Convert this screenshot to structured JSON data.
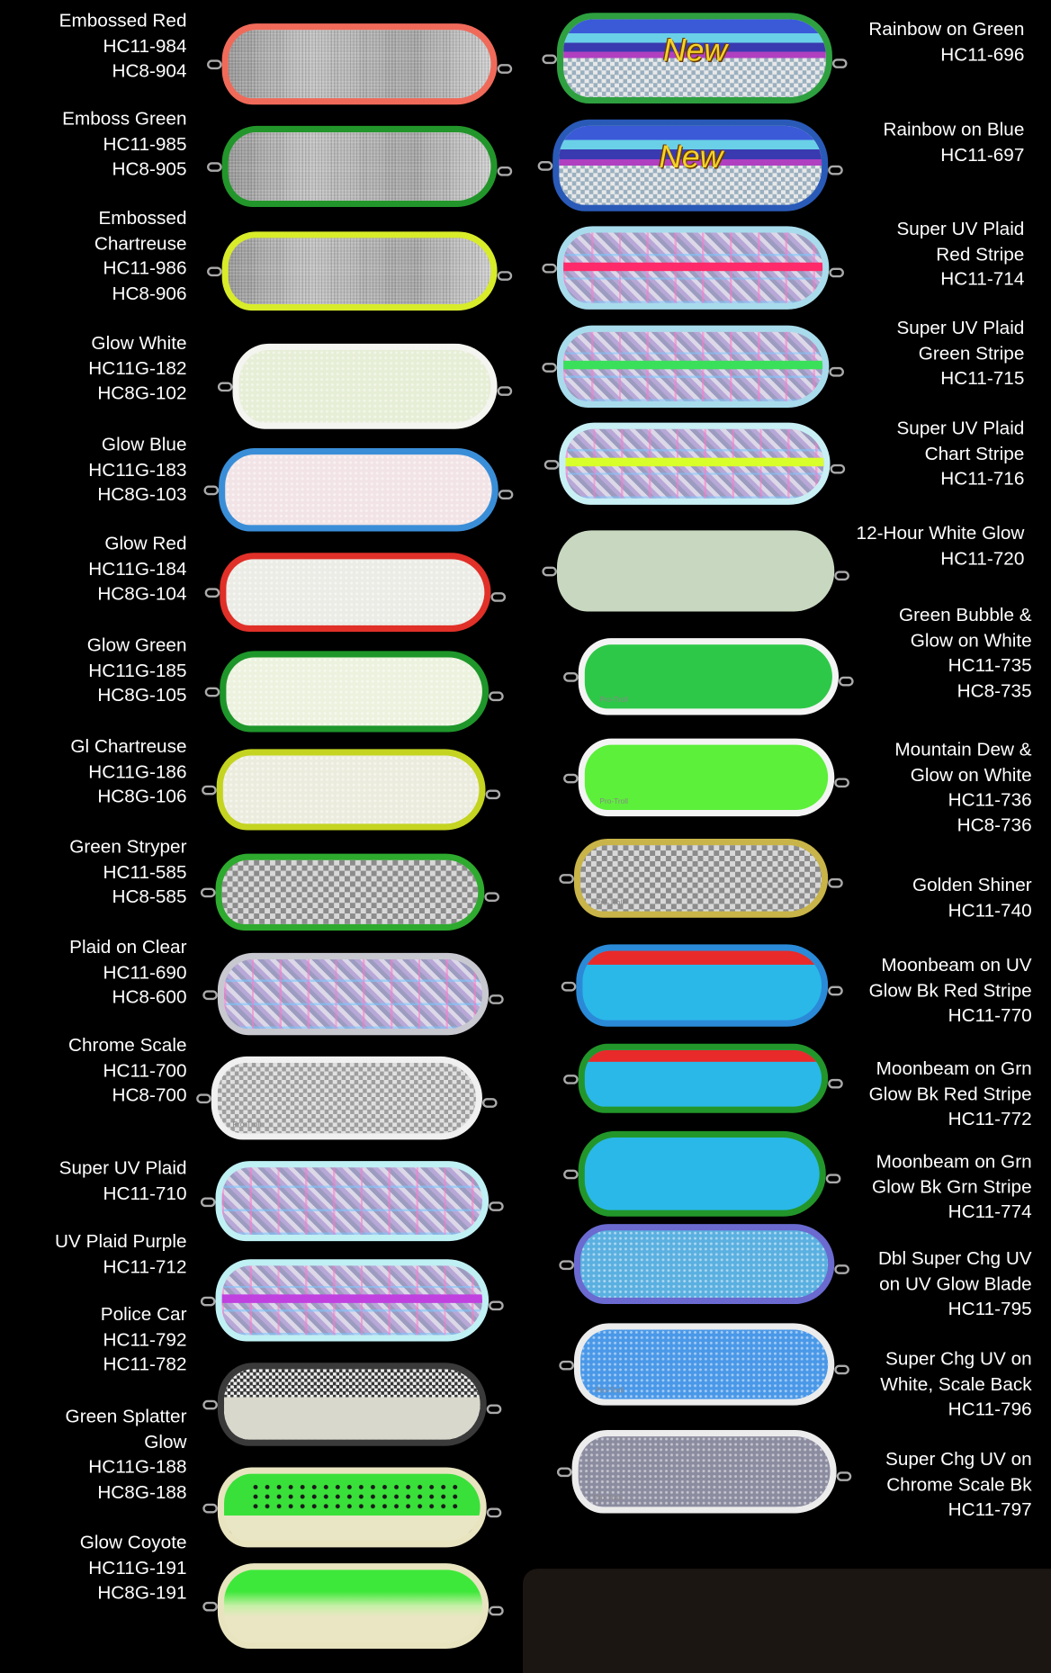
{
  "left_column": [
    {
      "lines": [
        "Embossed  Red",
        "HC11-984",
        "HC8-904"
      ],
      "border": "#f06a5a",
      "fill": "#b0b0b0",
      "pattern": "emboss"
    },
    {
      "lines": [
        "Emboss  Green",
        "HC11-985",
        "HC8-905"
      ],
      "border": "#22962a",
      "fill": "#b0b0b0",
      "pattern": "emboss"
    },
    {
      "lines": [
        "Embossed",
        "Chartreuse",
        "HC11-986",
        "HC8-906"
      ],
      "border": "#d8ec2a",
      "fill": "#b0b0b0",
      "pattern": "emboss"
    },
    {
      "lines": [
        "Glow White",
        "HC11G-182",
        "HC8G-102"
      ],
      "border": "#f4f4f0",
      "fill": "#e6eed6",
      "pattern": "glitter"
    },
    {
      "lines": [
        "Glow Blue",
        "HC11G-183",
        "HC8G-103"
      ],
      "border": "#3a8ed8",
      "fill": "#f2e4e6",
      "pattern": "glitter"
    },
    {
      "lines": [
        "Glow Red",
        "HC11G-184",
        "HC8G-104"
      ],
      "border": "#e03028",
      "fill": "#ecece6",
      "pattern": "glitter"
    },
    {
      "lines": [
        "Glow Green",
        "HC11G-185",
        "HC8G-105"
      ],
      "border": "#1e962a",
      "fill": "#ecf2de",
      "pattern": "glitter"
    },
    {
      "lines": [
        "Gl Chartreuse",
        "HC11G-186",
        "HC8G-106"
      ],
      "border": "#c4d420",
      "fill": "#ececde",
      "pattern": "glitter"
    },
    {
      "lines": [
        "Green Stryper",
        "HC11-585",
        "HC8-585"
      ],
      "border": "#2eaa2e",
      "fill": "#b8b8b8",
      "pattern": "checker"
    },
    {
      "lines": [
        "Plaid on Clear",
        "HC11-690",
        "HC8-600"
      ],
      "border": "#c8c8d0",
      "fill": "#c8c0dc",
      "pattern": "plaid"
    },
    {
      "lines": [
        "Chrome Scale",
        "HC11-700",
        "HC8-700"
      ],
      "border": "#f0f0f0",
      "fill": "#c0c0c0",
      "pattern": "scale",
      "logo": "Pro-Troll"
    },
    {
      "lines": [
        "Super UV Plaid",
        "HC11-710"
      ],
      "border": "#bff0f4",
      "fill": "#c8c0dc",
      "pattern": "plaid"
    },
    {
      "lines": [
        "UV Plaid Purple",
        "HC11-712"
      ],
      "border": "#bff0f4",
      "fill": "#c8c0dc",
      "pattern": "plaid",
      "stripe": "#c040e0"
    },
    {
      "lines": [
        "Police Car",
        "HC11-792",
        "HC11-782"
      ],
      "border": "#3a3a3a",
      "fill": "#d8d8cc",
      "pattern": "police"
    },
    {
      "lines": [
        "Green Splatter",
        "Glow",
        "HC11G-188",
        "HC8G-188"
      ],
      "border": "#e8e4c0",
      "fill": "#e8e6c4",
      "pattern": "splatter"
    },
    {
      "lines": [
        "Glow Coyote",
        "HC11G-191",
        "HC8G-191"
      ],
      "border": "#e8e4c0",
      "fill": "#eae6c4",
      "pattern": "coyote"
    }
  ],
  "right_column": [
    {
      "lines": [
        "Rainbow on Green",
        "HC11-696"
      ],
      "border": "#2ea040",
      "fill": "#c0c8d0",
      "pattern": "rainbow",
      "badge": "New"
    },
    {
      "lines": [
        "Rainbow on Blue",
        "HC11-697"
      ],
      "border": "#2a5ab8",
      "fill": "#c0c8d0",
      "pattern": "rainbow",
      "badge": "New"
    },
    {
      "lines": [
        "Super UV Plaid",
        "Red Stripe",
        "HC11-714"
      ],
      "border": "#a8dcec",
      "fill": "#c8c0dc",
      "pattern": "plaid",
      "stripe": "#ff2a6a"
    },
    {
      "lines": [
        "Super UV Plaid",
        "Green Stripe",
        "HC11-715"
      ],
      "border": "#a8dcec",
      "fill": "#c8c0dc",
      "pattern": "plaid",
      "stripe": "#3ae05a"
    },
    {
      "lines": [
        "Super UV Plaid",
        "Chart Stripe",
        "HC11-716"
      ],
      "border": "#c8f0f4",
      "fill": "#c8c0dc",
      "pattern": "plaid",
      "stripe": "#d8ff2a"
    },
    {
      "lines": [
        "12-Hour White Glow",
        "HC11-720"
      ],
      "border": "#c8d8c0",
      "fill": "#c8d8c0",
      "pattern": "solid"
    },
    {
      "lines": [
        "Green Bubble &",
        "Glow on White",
        "HC11-735",
        "HC8-735"
      ],
      "border": "#f4f4f4",
      "fill": "#2ec848",
      "pattern": "solid",
      "logo": "Pro-Troll"
    },
    {
      "lines": [
        "Mountain Dew &",
        "Glow on White",
        "HC11-736",
        "HC8-736"
      ],
      "border": "#f4f4f4",
      "fill": "#5cf03a",
      "pattern": "solid",
      "logo": "Pro-Troll"
    },
    {
      "lines": [
        "Golden Shiner",
        "HC11-740"
      ],
      "border": "#c8b448",
      "fill": "#c8c09a",
      "pattern": "checker",
      "logo": "Pro-Troll"
    },
    {
      "lines": [
        "Moonbeam on UV",
        "Glow Bk Red Stripe",
        "HC11-770"
      ],
      "border": "#2a8ad8",
      "fill": "#2ab8e8",
      "pattern": "solid",
      "topband": "#e82a2a"
    },
    {
      "lines": [
        "Moonbeam on Grn",
        "Glow Bk Red Stripe",
        "HC11-772"
      ],
      "border": "#22962a",
      "fill": "#2ab8e8",
      "pattern": "solid",
      "topband": "#e82a2a"
    },
    {
      "lines": [
        "Moonbeam on Grn",
        "Glow Bk Grn Stripe",
        "HC11-774"
      ],
      "border": "#22962a",
      "fill": "#2ab8e8",
      "pattern": "solid"
    },
    {
      "lines": [
        "Dbl Super Chg UV",
        "on UV Glow Blade",
        "HC11-795"
      ],
      "border": "#6a6ad0",
      "fill": "#5ab0e0",
      "pattern": "glitter"
    },
    {
      "lines": [
        "Super Chg UV on",
        "White, Scale Back",
        "HC11-796"
      ],
      "border": "#ececec",
      "fill": "#4a98e8",
      "pattern": "glitter",
      "logo": "Pro-Troll"
    },
    {
      "lines": [
        "Super Chg UV on",
        "Chrome Scale Bk",
        "HC11-797"
      ],
      "border": "#ececec",
      "fill": "#8c8ca0",
      "pattern": "glitter",
      "logo": "Pro-Troll"
    }
  ]
}
